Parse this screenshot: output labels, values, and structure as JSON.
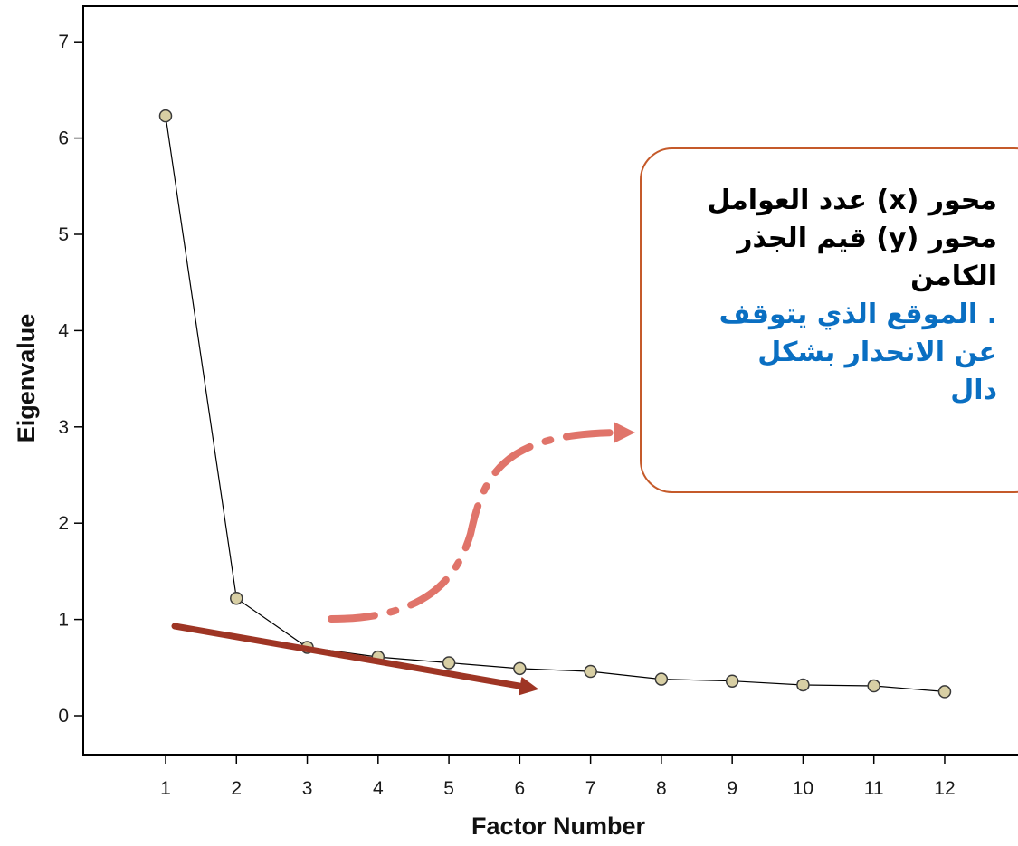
{
  "chart_data": {
    "type": "line",
    "xlabel": "Factor Number",
    "ylabel": "Eigenvalue",
    "x": [
      1,
      2,
      3,
      4,
      5,
      6,
      7,
      8,
      9,
      10,
      11,
      12
    ],
    "series": [
      {
        "values": [
          6.23,
          1.22,
          0.71,
          0.61,
          0.55,
          0.49,
          0.46,
          0.38,
          0.36,
          0.32,
          0.31,
          0.25
        ]
      }
    ],
    "x_ticks": [
      "1",
      "2",
      "3",
      "4",
      "5",
      "6",
      "7",
      "8",
      "9",
      "10",
      "11",
      "12"
    ],
    "y_ticks": [
      "0",
      "1",
      "2",
      "3",
      "4",
      "5",
      "6",
      "7"
    ],
    "xlim": [
      0,
      13
    ],
    "ylim": [
      -0.4,
      7.4
    ],
    "grid": false,
    "legend": "none",
    "marker_color": "#d8cfa4",
    "line_color": "#000000"
  },
  "annotations": {
    "callout_lines": [
      "محور (x) عدد العوامل",
      "محور (y) قيم الجذر",
      "الكامن",
      ". الموقع الذي يتوقف",
      "عن الانحدار بشكل",
      "دال"
    ],
    "callout_line_colors": [
      "#000000",
      "#000000",
      "#000000",
      "#0a6fc2",
      "#0a6fc2",
      "#0a6fc2"
    ],
    "callout_border_color": "#c55a2a",
    "curved_arrow_color": "#e0746a",
    "straight_arrow_color": "#9e3524"
  }
}
